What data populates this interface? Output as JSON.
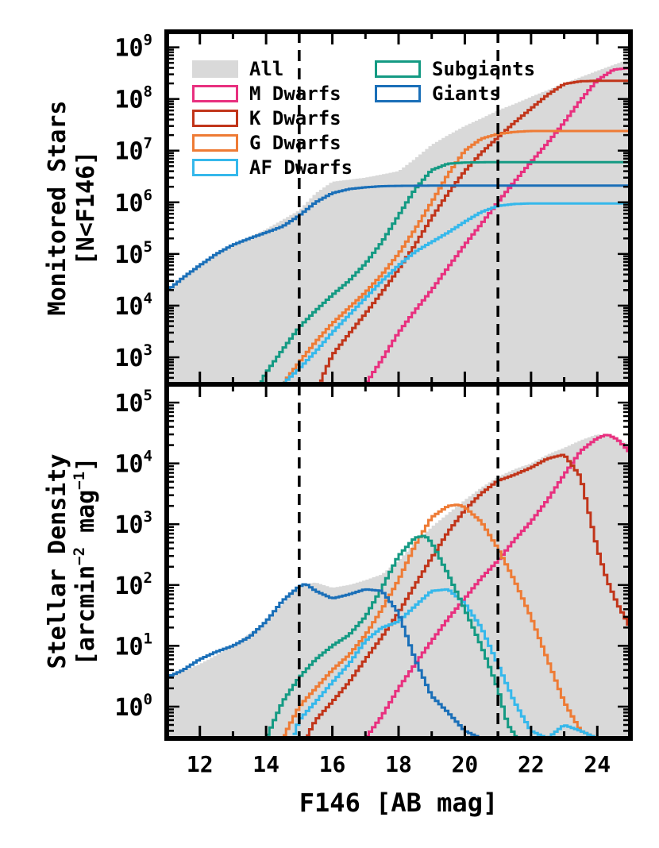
{
  "colors": {
    "all": "#d9d9d9",
    "m_dwarfs": "#e8307f",
    "k_dwarfs": "#c1351a",
    "g_dwarfs": "#ee7b35",
    "af_dwarfs": "#35b8eb",
    "subgiants": "#149a83",
    "giants": "#1a6fb8",
    "reference": "#000000"
  },
  "chart_data": [
    {
      "type": "area",
      "panel": "top",
      "ylabel_line1": "Monitored Stars",
      "ylabel_line2": "[N<F146]",
      "yscale": "log",
      "xlim": [
        11,
        25
      ],
      "ylim": [
        300,
        2000000000
      ],
      "yticks": [
        {
          "value": 1000,
          "base": "10",
          "exp": "3"
        },
        {
          "value": 10000,
          "base": "10",
          "exp": "4"
        },
        {
          "value": 100000,
          "base": "10",
          "exp": "5"
        },
        {
          "value": 1000000,
          "base": "10",
          "exp": "6"
        },
        {
          "value": 10000000,
          "base": "10",
          "exp": "7"
        },
        {
          "value": 100000000,
          "base": "10",
          "exp": "8"
        },
        {
          "value": 1000000000,
          "base": "10",
          "exp": "9"
        }
      ],
      "vlines": [
        15,
        21
      ],
      "legend": {
        "placement": "top-left",
        "entries": [
          {
            "key": "all",
            "label": "All"
          },
          {
            "key": "m_dwarfs",
            "label": "M Dwarfs"
          },
          {
            "key": "k_dwarfs",
            "label": "K Dwarfs"
          },
          {
            "key": "g_dwarfs",
            "label": "G Dwarfs"
          },
          {
            "key": "af_dwarfs",
            "label": "AF Dwarfs"
          },
          {
            "key": "subgiants",
            "label": "Subgiants"
          },
          {
            "key": "giants",
            "label": "Giants"
          }
        ]
      },
      "series": [
        {
          "key": "all",
          "x": [
            11,
            12,
            13,
            14,
            15,
            15.5,
            16,
            17,
            18,
            18.5,
            19,
            19.5,
            20,
            20.5,
            21,
            21.5,
            22,
            23,
            24,
            25
          ],
          "y": [
            20000,
            60000,
            150000,
            300000,
            700000,
            1500000,
            2500000,
            3000000,
            4000000,
            7000000,
            13000000,
            20000000,
            30000000,
            42000000,
            60000000,
            80000000,
            110000000,
            200000000,
            350000000,
            600000000
          ]
        },
        {
          "key": "m_dwarfs",
          "x": [
            17,
            17.5,
            18,
            18.5,
            19,
            19.5,
            20,
            20.5,
            21,
            21.5,
            22,
            22.5,
            23,
            23.5,
            24,
            24.5,
            25
          ],
          "y": [
            300,
            900,
            3000,
            8000,
            20000,
            55000,
            150000,
            380000,
            1000000,
            2500000,
            6000000,
            14000000,
            35000000,
            95000000,
            230000000,
            370000000,
            400000000
          ]
        },
        {
          "key": "k_dwarfs",
          "x": [
            15.6,
            16,
            16.5,
            17,
            17.5,
            18,
            18.5,
            19,
            19.5,
            20,
            20.5,
            21,
            21.5,
            22,
            22.5,
            23,
            23.5,
            24,
            25
          ],
          "y": [
            300,
            1100,
            2800,
            7000,
            18000,
            50000,
            150000,
            500000,
            1500000,
            4000000,
            9000000,
            18000000,
            35000000,
            65000000,
            120000000,
            195000000,
            220000000,
            225000000,
            225000000
          ]
        },
        {
          "key": "g_dwarfs",
          "x": [
            14.5,
            15,
            15.5,
            16,
            16.5,
            17,
            17.5,
            18,
            18.5,
            19,
            19.5,
            20,
            20.5,
            21,
            21.5,
            22,
            25
          ],
          "y": [
            300,
            800,
            2000,
            4500,
            9000,
            18000,
            40000,
            100000,
            300000,
            1000000,
            3500000,
            10000000,
            17000000,
            21000000,
            23000000,
            24000000,
            24000000
          ]
        },
        {
          "key": "af_dwarfs",
          "x": [
            14.5,
            15,
            15.5,
            16,
            16.5,
            17,
            17.5,
            18,
            18.5,
            19,
            19.5,
            20,
            20.5,
            21,
            21.5,
            22,
            25
          ],
          "y": [
            300,
            600,
            1300,
            3000,
            6500,
            14000,
            30000,
            60000,
            110000,
            170000,
            260000,
            420000,
            650000,
            850000,
            930000,
            950000,
            950000
          ]
        },
        {
          "key": "subgiants",
          "x": [
            13.8,
            14,
            14.5,
            15,
            15.5,
            16,
            16.5,
            17,
            17.5,
            18,
            18.5,
            19,
            19.5,
            20,
            21,
            22,
            25
          ],
          "y": [
            300,
            500,
            1400,
            3800,
            8000,
            16000,
            30000,
            65000,
            170000,
            550000,
            1800000,
            4200000,
            5600000,
            5900000,
            6000000,
            6000000,
            6000000
          ]
        },
        {
          "key": "giants",
          "x": [
            11,
            11.5,
            12,
            12.5,
            13,
            13.5,
            14,
            14.5,
            15,
            15.5,
            16,
            16.5,
            17,
            17.5,
            18,
            19,
            20,
            21,
            22,
            25
          ],
          "y": [
            19000,
            35000,
            60000,
            100000,
            150000,
            200000,
            260000,
            340000,
            550000,
            1000000,
            1500000,
            1800000,
            1950000,
            2050000,
            2080000,
            2100000,
            2100000,
            2100000,
            2100000,
            2100000
          ]
        }
      ]
    },
    {
      "type": "area",
      "panel": "bottom",
      "xlabel": "F146 [AB mag]",
      "ylabel_line1": "Stellar Density",
      "ylabel_line2_prefix": "[arcmin",
      "ylabel_line2_sup1": "−2",
      "ylabel_line2_mid": " mag",
      "ylabel_line2_sup2": "−1",
      "ylabel_line2_suffix": "]",
      "yscale": "log",
      "xlim": [
        11,
        25
      ],
      "ylim": [
        0.3,
        200000
      ],
      "xticks": [
        12,
        14,
        16,
        18,
        20,
        22,
        24
      ],
      "yticks": [
        {
          "value": 1,
          "base": "10",
          "exp": "0"
        },
        {
          "value": 10,
          "base": "10",
          "exp": "1"
        },
        {
          "value": 100,
          "base": "10",
          "exp": "2"
        },
        {
          "value": 1000,
          "base": "10",
          "exp": "3"
        },
        {
          "value": 10000,
          "base": "10",
          "exp": "4"
        },
        {
          "value": 100000,
          "base": "10",
          "exp": "5"
        }
      ],
      "vlines": [
        15,
        21
      ],
      "series": [
        {
          "key": "all",
          "x": [
            11,
            12,
            13,
            14,
            14.5,
            15,
            15.5,
            16,
            16.5,
            17,
            17.5,
            18,
            18.5,
            19,
            19.5,
            20,
            20.5,
            21,
            21.5,
            22,
            22.5,
            23,
            23.5,
            24,
            24.5,
            25
          ],
          "y": [
            3,
            5,
            10,
            25,
            50,
            100,
            110,
            90,
            100,
            120,
            150,
            250,
            500,
            900,
            1500,
            2500,
            4000,
            6000,
            8000,
            10000,
            14000,
            18000,
            24000,
            30000,
            28000,
            20000
          ]
        },
        {
          "key": "m_dwarfs",
          "x": [
            17,
            17.5,
            18,
            18.5,
            19,
            19.5,
            20,
            20.5,
            21,
            21.5,
            22,
            22.5,
            23,
            23.5,
            24,
            24.3,
            24.6,
            25
          ],
          "y": [
            0.3,
            0.7,
            2,
            5,
            12,
            28,
            60,
            130,
            250,
            550,
            1100,
            2500,
            6500,
            16000,
            26000,
            30000,
            25000,
            15000
          ]
        },
        {
          "key": "k_dwarfs",
          "x": [
            15.2,
            15.5,
            16,
            16.5,
            17,
            17.5,
            18,
            18.5,
            19,
            19.5,
            20,
            20.5,
            21,
            21.5,
            22,
            22.5,
            23,
            23.5,
            24,
            24.3,
            24.6,
            25
          ],
          "y": [
            0.3,
            0.6,
            1.2,
            2.5,
            6,
            14,
            35,
            100,
            280,
            750,
            1700,
            3200,
            5200,
            6500,
            8500,
            12000,
            14000,
            6000,
            400,
            120,
            50,
            20
          ]
        },
        {
          "key": "g_dwarfs",
          "x": [
            14.5,
            15,
            15.5,
            16,
            16.5,
            17,
            17.5,
            18,
            18.5,
            19,
            19.5,
            19.8,
            20,
            20.5,
            21,
            21.5,
            22,
            22.5,
            23,
            23.5,
            24
          ],
          "y": [
            0.3,
            1,
            2,
            4,
            7,
            15,
            40,
            120,
            450,
            1300,
            2000,
            2100,
            1900,
            1100,
            400,
            120,
            30,
            6,
            1.2,
            0.4,
            0.3
          ]
        },
        {
          "key": "af_dwarfs",
          "x": [
            14.8,
            15,
            15.5,
            16,
            16.5,
            17,
            17.5,
            18,
            18.5,
            19,
            19.5,
            20,
            20.5,
            21,
            21.5,
            22,
            22.5,
            23,
            23.5,
            24
          ],
          "y": [
            0.3,
            0.6,
            1.2,
            2.5,
            5,
            12,
            20,
            25,
            45,
            80,
            85,
            50,
            20,
            5,
            1.2,
            0.4,
            0.3,
            0.5,
            0.4,
            0.3
          ]
        },
        {
          "key": "subgiants",
          "x": [
            14,
            14.5,
            15,
            15.5,
            16,
            16.5,
            17,
            17.5,
            18,
            18.5,
            18.8,
            19,
            19.5,
            20,
            20.5,
            21,
            21.3,
            21.6
          ],
          "y": [
            0.3,
            1.2,
            3,
            6,
            10,
            15,
            30,
            90,
            300,
            600,
            650,
            500,
            150,
            40,
            10,
            2,
            0.5,
            0.3
          ]
        },
        {
          "key": "giants",
          "x": [
            11,
            11.5,
            12,
            12.5,
            13,
            13.5,
            14,
            14.5,
            15,
            15.2,
            15.5,
            16,
            16.5,
            17,
            17.5,
            18,
            18.5,
            19,
            19.5,
            20,
            20.5
          ],
          "y": [
            3,
            4,
            6,
            8,
            10,
            14,
            25,
            55,
            95,
            105,
            80,
            60,
            70,
            85,
            80,
            35,
            6,
            1.5,
            0.8,
            0.4,
            0.3
          ]
        }
      ]
    }
  ]
}
